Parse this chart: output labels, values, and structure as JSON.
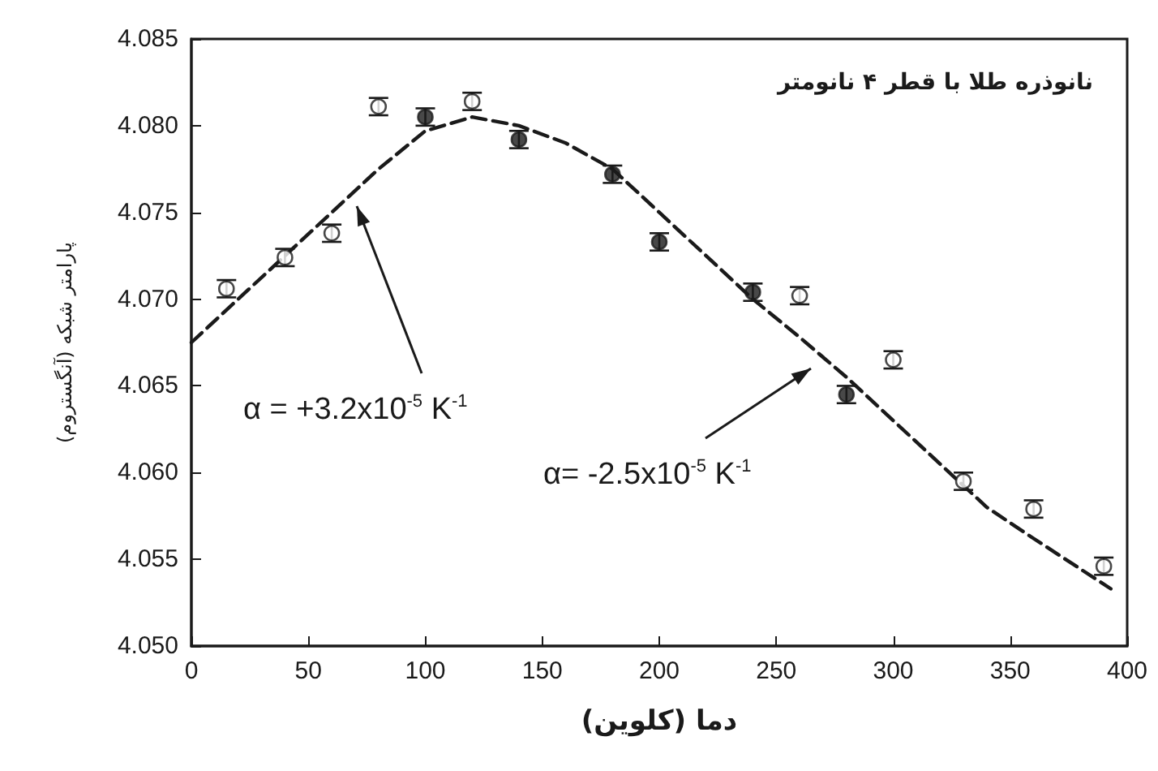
{
  "chart_data": {
    "type": "scatter",
    "title": "نانوذره طلا با قطر ۴ نانومتر",
    "xlabel": "دما (کلوین)",
    "ylabel": "پارامتر شبکه (آنگستروم)",
    "xlim": [
      0,
      400
    ],
    "xticks": [
      0,
      50,
      100,
      150,
      200,
      250,
      300,
      350,
      400
    ],
    "ylim": [
      4.05,
      4.085
    ],
    "yticks": [
      {
        "value": 4.05,
        "label": "4.050"
      },
      4.055,
      {
        "value": 4.06,
        "label": "4.060"
      },
      4.065,
      {
        "value": 4.07,
        "label": "4.070"
      },
      4.075,
      {
        "value": 4.08,
        "label": "4.080"
      },
      4.085
    ],
    "grid": false,
    "marker": "circle",
    "series": [
      {
        "color": "#ffffff",
        "x": [
          15,
          40,
          60,
          80,
          120,
          260,
          300,
          330,
          360,
          390
        ],
        "values": [
          4.0706,
          4.0724,
          4.0738,
          4.0811,
          4.0814,
          4.0702,
          4.0665,
          4.0595,
          4.0579,
          4.0546
        ],
        "errors": [
          0.0005,
          0.0005,
          0.0005,
          0.0005,
          0.0005,
          0.0005,
          0.0005,
          0.0005,
          0.0005,
          0.0005
        ]
      },
      {
        "color": "#1a1a1a",
        "x": [
          100,
          140,
          180,
          200,
          240,
          280
        ],
        "values": [
          4.0805,
          4.0792,
          4.0772,
          4.0733,
          4.0704,
          4.0645
        ],
        "errors": [
          0.0005,
          0.0005,
          0.0005,
          0.0005,
          0.0005,
          0.0005
        ]
      },
      {
        "type": "line",
        "color": "#1a1a1a",
        "line_style": "dashed",
        "marker": "none",
        "x": [
          0,
          20,
          40,
          60,
          80,
          100,
          120,
          140,
          160,
          180,
          200,
          220,
          240,
          260,
          280,
          300,
          320,
          340,
          360,
          393
        ],
        "values": [
          4.0675,
          4.07,
          4.0725,
          4.075,
          4.0775,
          4.0797,
          4.0805,
          4.08,
          4.079,
          4.0775,
          4.075,
          4.0725,
          4.07,
          4.0678,
          4.0655,
          4.063,
          4.0605,
          4.058,
          4.0562,
          4.0533
        ]
      }
    ],
    "annotations": [
      "α = +3.2x10$^{-5}$ K$^{-1}$",
      "α= -2.5x10$^{-5}$ K$^{-1}$"
    ]
  }
}
